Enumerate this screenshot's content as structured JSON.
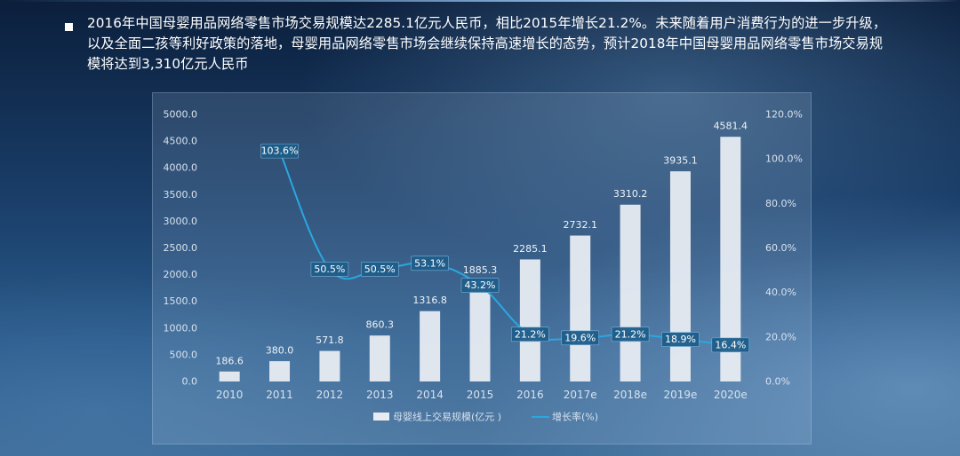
{
  "description": "2016年中国母婴用品网络零售市场交易规模达2285.1亿元人民币，相比2015年增长21.2%。未来随着用户消费行为的进一步升级，以及全面二孩等利好政策的落地，母婴用品网络零售市场会继续保持高速增长的态势，预计2018年中国母婴用品网络零售市场交易规模将达到3,310亿元人民币",
  "colors": {
    "bar": "#e8ecf2",
    "line": "#29a8e0",
    "label_box": "#1e5d8a"
  },
  "chart_data": {
    "type": "bar",
    "title": "",
    "xlabel": "",
    "ylabel": "",
    "categories": [
      "2010",
      "2011",
      "2012",
      "2013",
      "2014",
      "2015",
      "2016",
      "2017e",
      "2018e",
      "2019e",
      "2020e"
    ],
    "series": [
      {
        "name": "母婴线上交易规模(亿元 )",
        "type": "bar",
        "axis": "left",
        "values": [
          186.6,
          380.0,
          571.8,
          860.3,
          1316.8,
          1885.3,
          2285.1,
          2732.1,
          3310.2,
          3935.1,
          4581.4
        ],
        "labels": [
          "186.6",
          "380.0",
          "571.8",
          "860.3",
          "1316.8",
          "1885.3",
          "2285.1",
          "2732.1",
          "3310.2",
          "3935.1",
          "4581.4"
        ]
      },
      {
        "name": "增长率(%)",
        "type": "line",
        "axis": "right",
        "values": [
          null,
          103.6,
          50.5,
          50.5,
          53.1,
          43.2,
          21.2,
          19.6,
          21.2,
          18.9,
          16.4
        ],
        "labels": [
          null,
          "103.6%",
          "50.5%",
          "50.5%",
          "53.1%",
          "43.2%",
          "21.2%",
          "19.6%",
          "21.2%",
          "18.9%",
          "16.4%"
        ]
      }
    ],
    "ylim": [
      0,
      5000
    ],
    "y_ticks": [
      "0.0",
      "500.0",
      "1000.0",
      "1500.0",
      "2000.0",
      "2500.0",
      "3000.0",
      "3500.0",
      "4000.0",
      "4500.0",
      "5000.0"
    ],
    "y2lim": [
      0,
      120
    ],
    "y2_ticks": [
      "0.0%",
      "20.0%",
      "40.0%",
      "60.0%",
      "80.0%",
      "100.0%",
      "120.0%"
    ],
    "grid": false,
    "legend_position": "bottom-center"
  }
}
